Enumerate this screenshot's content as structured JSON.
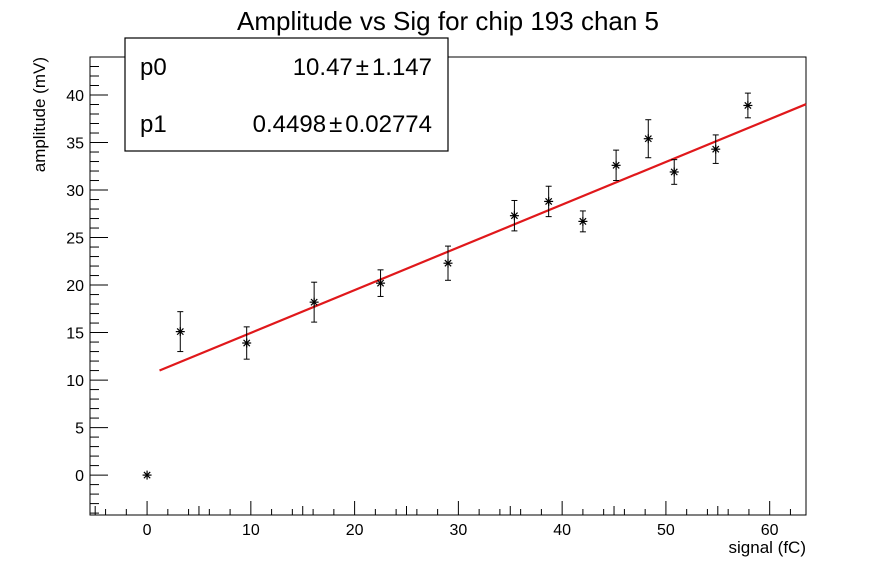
{
  "chart_data": {
    "type": "scatter",
    "title": "Amplitude vs Sig for chip 193 chan 5",
    "xlabel": "signal (fC)",
    "ylabel": "amplitude (mV)",
    "xlim": [
      -5.5,
      63.5
    ],
    "ylim": [
      -4.2,
      44
    ],
    "x_ticks": [
      0,
      10,
      20,
      30,
      40,
      50,
      60
    ],
    "y_ticks": [
      0,
      5,
      10,
      15,
      20,
      25,
      30,
      35,
      40
    ],
    "grid": false,
    "marker": "asterisk",
    "points": [
      {
        "x": 0.0,
        "y": 0.0,
        "err": 0.0
      },
      {
        "x": 3.2,
        "y": 15.1,
        "err": 2.1
      },
      {
        "x": 9.6,
        "y": 13.9,
        "err": 1.7
      },
      {
        "x": 16.1,
        "y": 18.2,
        "err": 2.1
      },
      {
        "x": 22.5,
        "y": 20.2,
        "err": 1.4
      },
      {
        "x": 29.0,
        "y": 22.3,
        "err": 1.8
      },
      {
        "x": 35.4,
        "y": 27.3,
        "err": 1.6
      },
      {
        "x": 38.7,
        "y": 28.8,
        "err": 1.6
      },
      {
        "x": 42.0,
        "y": 26.7,
        "err": 1.1
      },
      {
        "x": 45.2,
        "y": 32.6,
        "err": 1.6
      },
      {
        "x": 48.3,
        "y": 35.4,
        "err": 2.0
      },
      {
        "x": 50.8,
        "y": 31.9,
        "err": 1.3
      },
      {
        "x": 54.8,
        "y": 34.3,
        "err": 1.5
      },
      {
        "x": 57.9,
        "y": 38.9,
        "err": 1.3
      }
    ],
    "fit": {
      "color": "#e0181b",
      "x_range": [
        1.2,
        63.5
      ],
      "p0": 10.47,
      "p1": 0.4498
    },
    "stats_box": {
      "placement": "top-left",
      "rows": [
        {
          "name": "p0",
          "value": "10.47",
          "pm": "±",
          "error": "1.147"
        },
        {
          "name": "p1",
          "value": "0.4498",
          "pm": "±",
          "error": "0.02774"
        }
      ]
    }
  }
}
